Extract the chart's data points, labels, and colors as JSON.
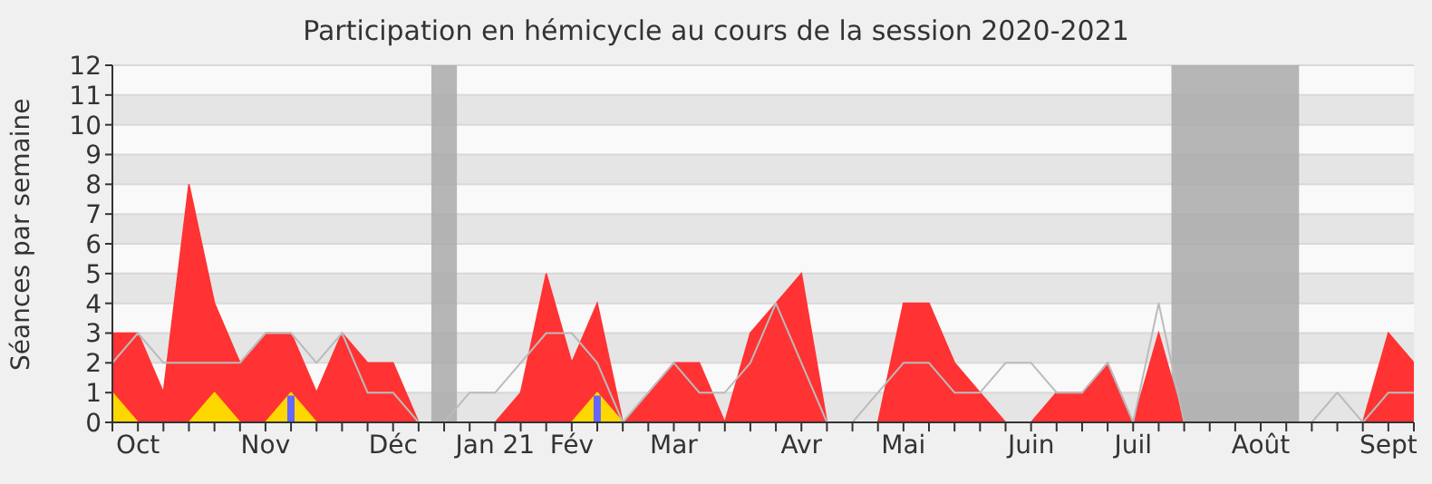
{
  "chart_data": {
    "type": "area",
    "title": "Participation en hémicycle au cours de la session 2020-2021",
    "ylabel": "Séances par semaine",
    "categories": [
      null,
      "Oct",
      null,
      null,
      null,
      null,
      "Nov",
      null,
      null,
      null,
      null,
      "Déc",
      null,
      null,
      null,
      "Jan 21",
      null,
      null,
      "Fév",
      null,
      null,
      null,
      "Mar",
      null,
      null,
      null,
      null,
      "Avr",
      null,
      null,
      null,
      "Mai",
      null,
      null,
      null,
      null,
      "Juin",
      null,
      null,
      null,
      "Juil",
      null,
      null,
      null,
      null,
      "Août",
      null,
      null,
      null,
      null,
      "Sept",
      null
    ],
    "ylim": [
      0,
      12
    ],
    "yticks": [
      0,
      1,
      2,
      3,
      4,
      5,
      6,
      7,
      8,
      9,
      10,
      11,
      12
    ],
    "grid": "y",
    "legend": false,
    "series": [
      {
        "color": "#ff3333",
        "values": [
          3,
          3,
          1,
          8,
          4,
          2,
          3,
          3,
          1,
          3,
          2,
          2,
          0,
          0,
          0,
          0,
          1,
          5,
          2,
          4,
          0,
          1,
          2,
          2,
          0,
          3,
          4,
          5,
          0,
          0,
          0,
          4,
          4,
          2,
          1,
          0,
          0,
          1,
          1,
          2,
          0,
          3,
          0,
          0,
          0,
          0,
          0,
          0,
          0,
          0,
          3,
          2
        ]
      },
      {
        "type": "line",
        "color": "#bbbbbb",
        "values": [
          2,
          3,
          2,
          2,
          2,
          2,
          3,
          3,
          2,
          3,
          1,
          1,
          0,
          0,
          1,
          1,
          2,
          3,
          3,
          2,
          0,
          1,
          2,
          1,
          1,
          2,
          4,
          2,
          0,
          0,
          1,
          2,
          2,
          1,
          1,
          2,
          2,
          1,
          1,
          2,
          0,
          4,
          0,
          0,
          0,
          0,
          0,
          0,
          1,
          0,
          1,
          1
        ]
      },
      {
        "type": "area",
        "color": "#ffd700",
        "values": [
          1,
          0,
          0,
          0,
          1,
          0,
          0,
          1,
          0,
          0,
          0,
          0,
          0,
          0,
          0,
          0,
          0,
          0,
          0,
          1,
          0,
          0,
          0,
          0,
          0,
          0,
          0,
          0,
          0,
          0,
          0,
          0,
          0,
          0,
          0,
          0,
          0,
          0,
          0,
          0,
          0,
          0,
          0,
          0,
          0,
          0,
          0,
          0,
          0,
          0,
          0,
          0
        ]
      },
      {
        "type": "bar",
        "color": "#6666ff",
        "values": [
          null,
          null,
          null,
          null,
          null,
          null,
          null,
          0.9,
          null,
          null,
          null,
          null,
          null,
          null,
          null,
          null,
          null,
          null,
          null,
          0.9,
          null,
          null,
          null,
          null,
          null,
          null,
          null,
          null,
          null,
          null,
          null,
          null,
          null,
          null,
          null,
          null,
          null,
          null,
          null,
          null,
          null,
          null,
          null,
          null,
          null,
          null,
          null,
          null,
          null,
          null,
          null,
          null
        ]
      }
    ]
  }
}
